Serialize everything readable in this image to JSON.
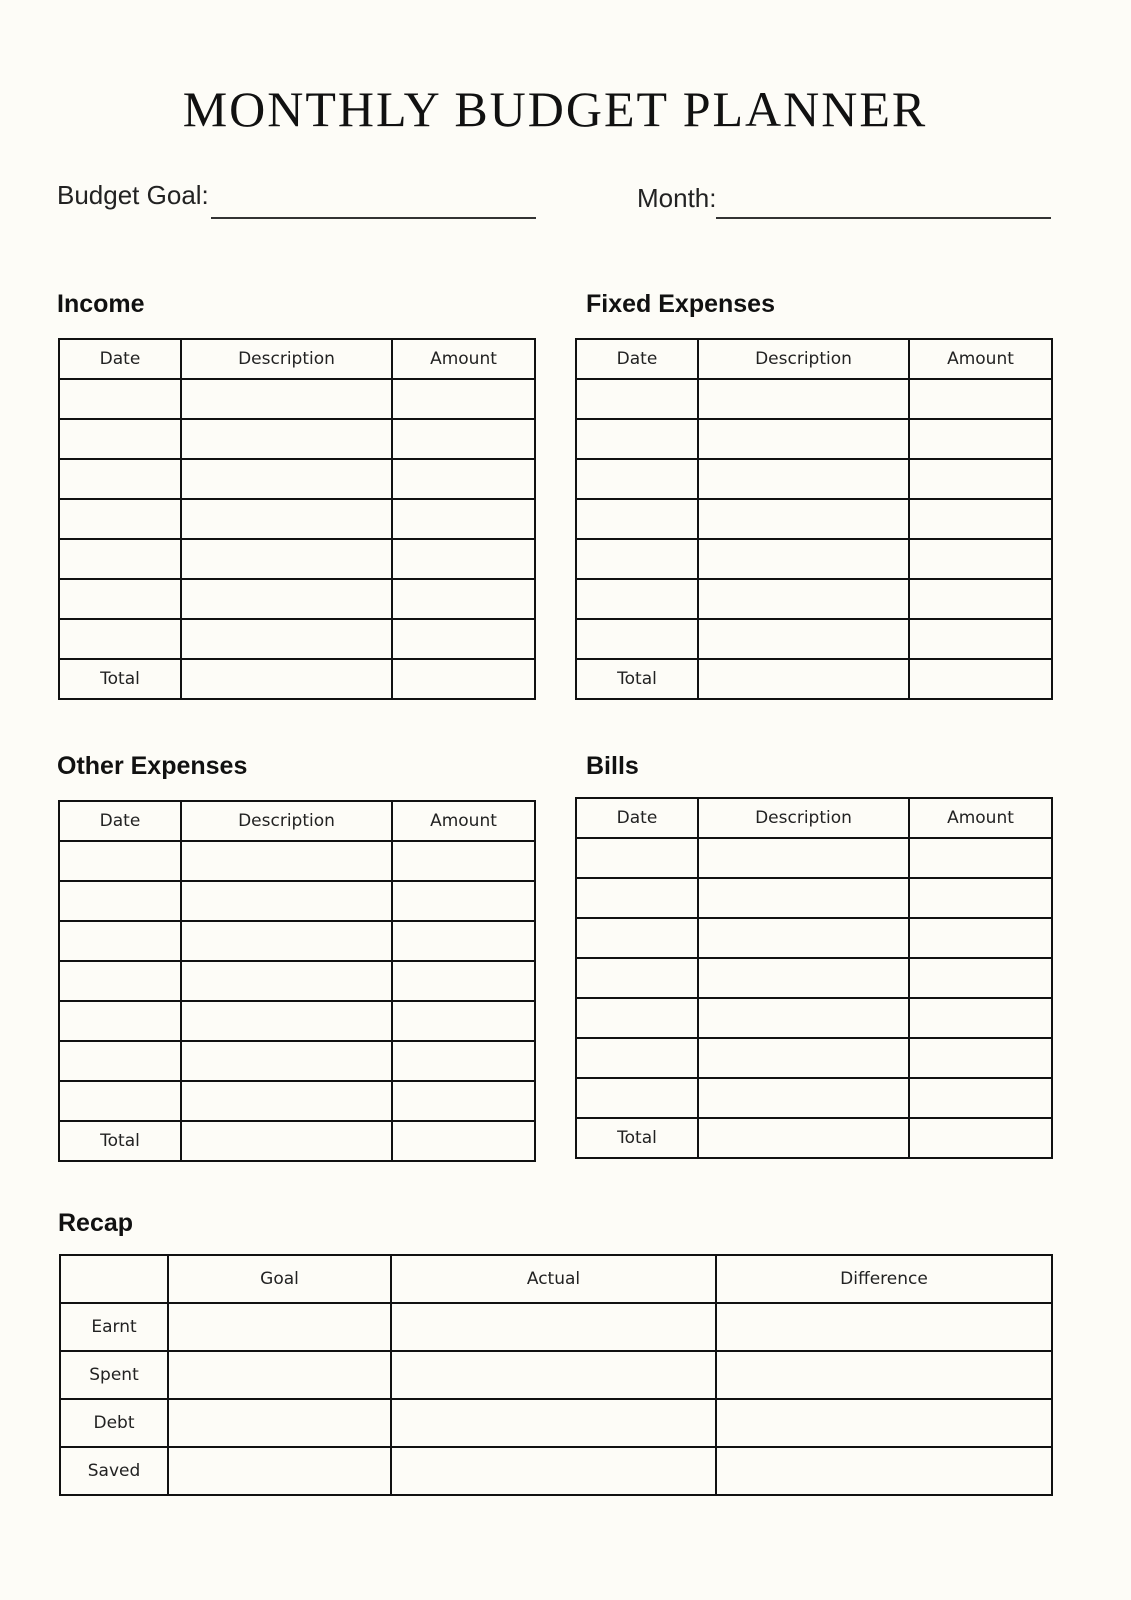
{
  "title": "MONTHLY BUDGET PLANNER",
  "fields": {
    "budget_goal_label": "Budget Goal:",
    "budget_goal_value": "",
    "month_label": "Month:",
    "month_value": ""
  },
  "columns": [
    "Date",
    "Description",
    "Amount"
  ],
  "total_label": "Total",
  "sections": [
    {
      "id": "income",
      "title": "Income",
      "blank_rows": 7
    },
    {
      "id": "fixed-expenses",
      "title": "Fixed Expenses",
      "blank_rows": 7
    },
    {
      "id": "other-expenses",
      "title": "Other Expenses",
      "blank_rows": 7
    },
    {
      "id": "bills",
      "title": "Bills",
      "blank_rows": 7
    }
  ],
  "recap": {
    "title": "Recap",
    "columns": [
      "",
      "Goal",
      "Actual",
      "Difference"
    ],
    "rows": [
      "Earnt",
      "Spent",
      "Debt",
      "Saved"
    ]
  },
  "colors": {
    "background": "#fdfcf7",
    "lines": "#111111"
  }
}
